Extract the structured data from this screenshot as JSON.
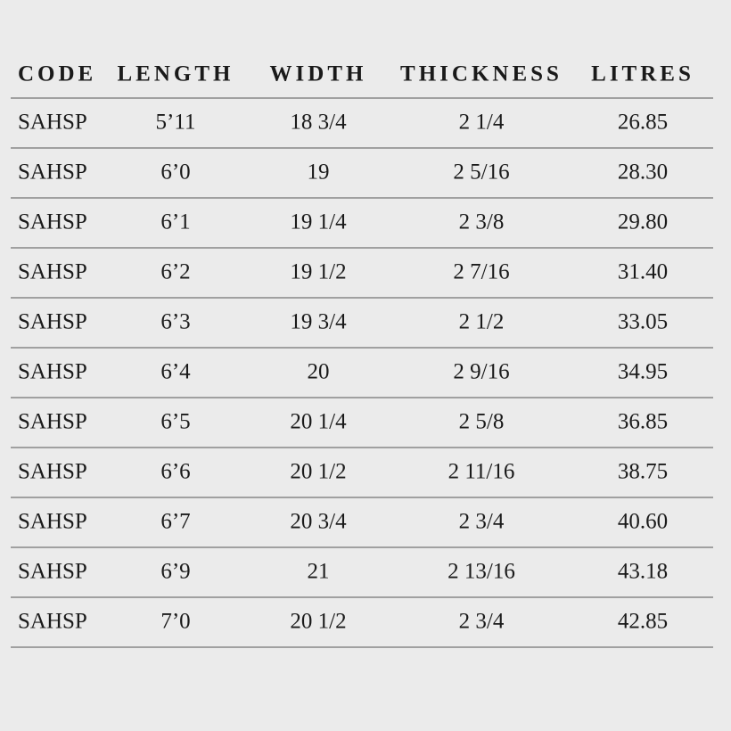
{
  "table": {
    "header": [
      "CODE",
      "LENGTH",
      "WIDTH",
      "THICKNESS",
      "LITRES"
    ],
    "rows": [
      [
        "SAHSP",
        "5’11",
        "18 3/4",
        "2 1/4",
        "26.85"
      ],
      [
        "SAHSP",
        "6’0",
        "19",
        "2 5/16",
        "28.30"
      ],
      [
        "SAHSP",
        "6’1",
        "19 1/4",
        "2 3/8",
        "29.80"
      ],
      [
        "SAHSP",
        "6’2",
        "19 1/2",
        "2 7/16",
        "31.40"
      ],
      [
        "SAHSP",
        "6’3",
        "19 3/4",
        "2 1/2",
        "33.05"
      ],
      [
        "SAHSP",
        "6’4",
        "20",
        "2 9/16",
        "34.95"
      ],
      [
        "SAHSP",
        "6’5",
        "20 1/4",
        "2 5/8",
        "36.85"
      ],
      [
        "SAHSP",
        "6’6",
        "20 1/2",
        "2 11/16",
        "38.75"
      ],
      [
        "SAHSP",
        "6’7",
        "20 3/4",
        "2 3/4",
        "40.60"
      ],
      [
        "SAHSP",
        "6’9",
        "21",
        "2 13/16",
        "43.18"
      ],
      [
        "SAHSP",
        "7’0",
        "20 1/2",
        "2 3/4",
        "42.85"
      ]
    ]
  }
}
